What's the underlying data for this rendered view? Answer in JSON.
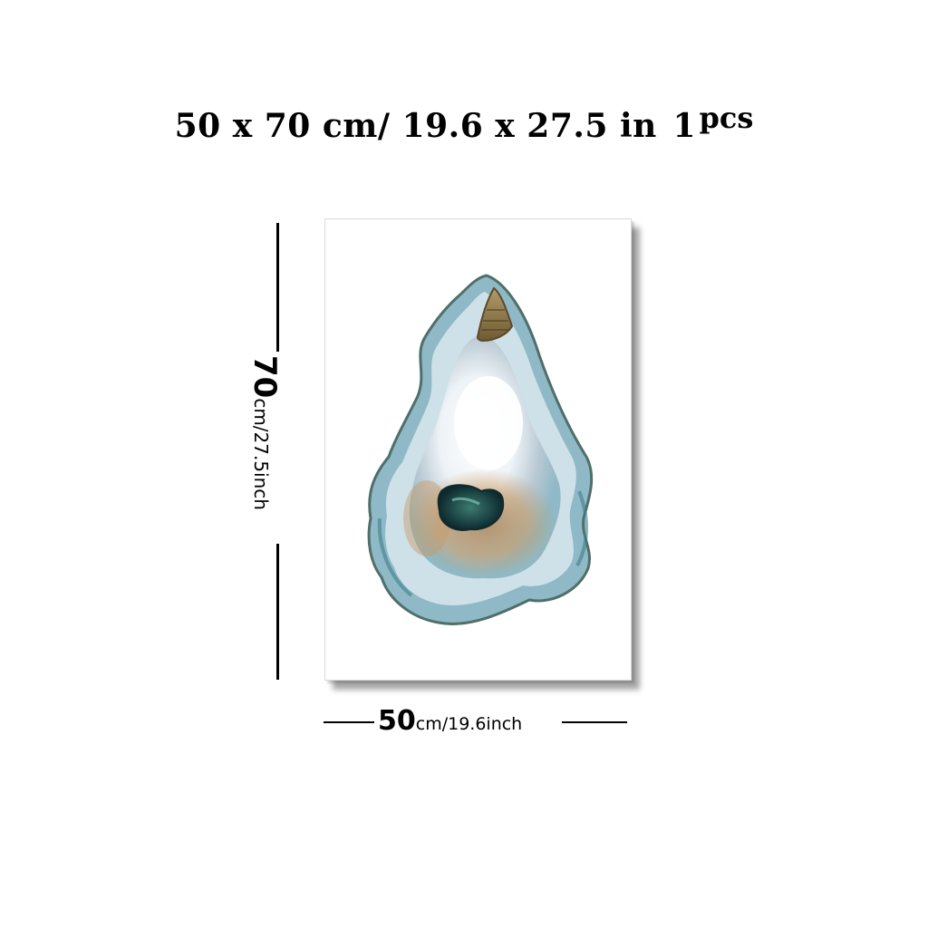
{
  "header": {
    "dimensions": "50 x 70 cm/ 19.6 x 27.5 in",
    "quantity": "1",
    "quantity_unit": "pcs"
  },
  "height_dimension": {
    "value": "70",
    "unit_text": "cm/27.5inch"
  },
  "width_dimension": {
    "value": "50",
    "unit_text": "cm/19.6inch"
  },
  "artwork": {
    "subject": "watercolor oyster shell",
    "colors": {
      "shell_blue": "#8fb9c6",
      "shell_edge": "#4f6f6a",
      "inner_light": "#f4f7fa",
      "amber": "#c89a63",
      "muscle_dark": "#1f4a4a",
      "hinge": "#8a6d3b"
    }
  }
}
